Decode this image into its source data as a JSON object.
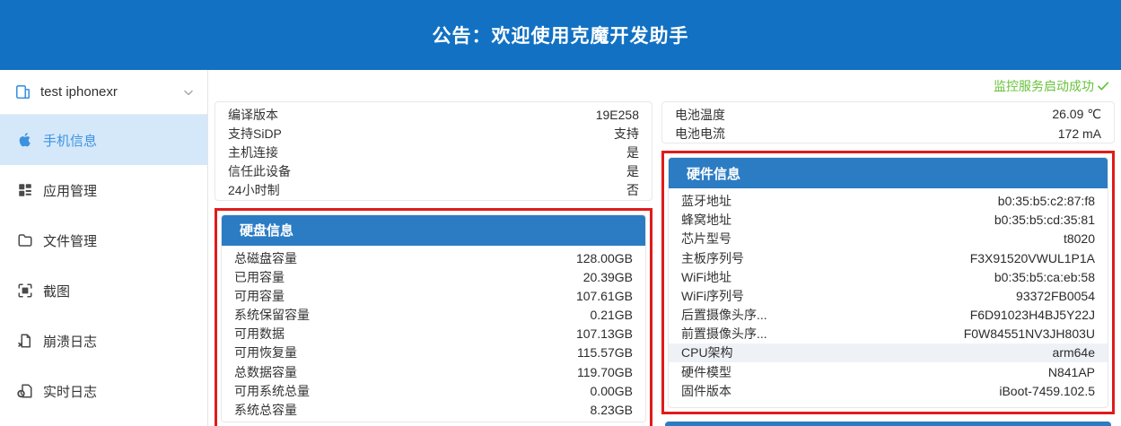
{
  "banner": {
    "text": "公告：欢迎使用克魔开发助手"
  },
  "sidebar": {
    "device": {
      "name": "test iphonexr",
      "icon": "device-phone-icon",
      "chevron": "chevron-down-icon"
    },
    "items": [
      {
        "label": "手机信息",
        "icon": "apple-icon",
        "active": true
      },
      {
        "label": "应用管理",
        "icon": "apps-grid-icon",
        "active": false
      },
      {
        "label": "文件管理",
        "icon": "folder-icon",
        "active": false
      },
      {
        "label": "截图",
        "icon": "screenshot-icon",
        "active": false
      },
      {
        "label": "崩溃日志",
        "icon": "crash-log-icon",
        "active": false
      },
      {
        "label": "实时日志",
        "icon": "realtime-log-icon",
        "active": false
      }
    ]
  },
  "header": {
    "status": "监控服务启动成功",
    "status_icon": "check-icon"
  },
  "panels": {
    "left_top": {
      "rows": [
        {
          "l": "编译版本",
          "v": "19E258"
        },
        {
          "l": "支持SiDP",
          "v": "支持"
        },
        {
          "l": "主机连接",
          "v": "是"
        },
        {
          "l": "信任此设备",
          "v": "是"
        },
        {
          "l": "24小时制",
          "v": "否"
        }
      ]
    },
    "disk": {
      "title": "硬盘信息",
      "highlighted": true,
      "rows": [
        {
          "l": "总磁盘容量",
          "v": "128.00GB"
        },
        {
          "l": "已用容量",
          "v": "20.39GB"
        },
        {
          "l": "可用容量",
          "v": "107.61GB"
        },
        {
          "l": "系统保留容量",
          "v": "0.21GB"
        },
        {
          "l": "可用数据",
          "v": "107.13GB"
        },
        {
          "l": "可用恢复量",
          "v": "115.57GB"
        },
        {
          "l": "总数据容量",
          "v": "119.70GB"
        },
        {
          "l": "可用系统总量",
          "v": "0.00GB"
        },
        {
          "l": "系统总容量",
          "v": "8.23GB"
        }
      ]
    },
    "right_top": {
      "rows": [
        {
          "l": "电池温度",
          "v": "26.09 ℃"
        },
        {
          "l": "电池电流",
          "v": "172 mA"
        }
      ]
    },
    "hardware": {
      "title": "硬件信息",
      "highlighted": true,
      "rows": [
        {
          "l": "蓝牙地址",
          "v": "b0:35:b5:c2:87:f8"
        },
        {
          "l": "蜂窝地址",
          "v": "b0:35:b5:cd:35:81"
        },
        {
          "l": "芯片型号",
          "v": "t8020"
        },
        {
          "l": "主板序列号",
          "v": "F3X91520VWUL1P1A"
        },
        {
          "l": "WiFi地址",
          "v": "b0:35:b5:ca:eb:58"
        },
        {
          "l": "WiFi序列号",
          "v": "93372FB0054"
        },
        {
          "l": "后置摄像头序...",
          "v": "F6D91023H4BJ5Y22J"
        },
        {
          "l": "前置摄像头序...",
          "v": "F0W84551NV3JH803U"
        },
        {
          "l": "CPU架构",
          "v": "arm64e",
          "hl": true
        },
        {
          "l": "硬件模型",
          "v": "N841AP"
        },
        {
          "l": "固件版本",
          "v": "iBoot-7459.102.5"
        }
      ]
    }
  },
  "colors": {
    "banner_blue": "#1271c3",
    "panel_header_blue": "#2c7cc4",
    "highlight_red": "#e01b1b",
    "active_item_bg": "#d5e8fa",
    "active_item_text": "#3d92e0",
    "success_green": "#67c23a"
  }
}
